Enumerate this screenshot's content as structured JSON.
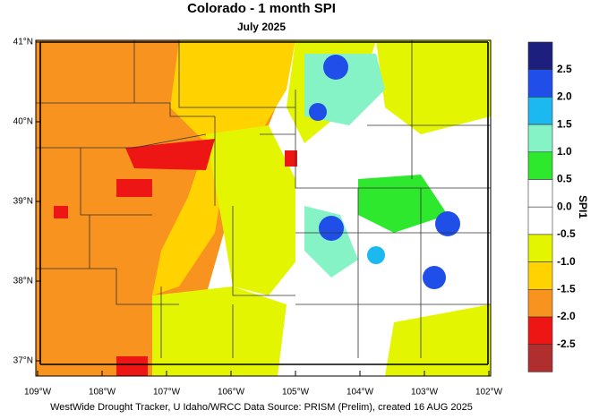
{
  "title": "Colorado - 1 month SPI",
  "subtitle": "July 2025",
  "latitude_labels": [
    "41°N",
    "40°N",
    "39°N",
    "38°N",
    "37°N"
  ],
  "longitude_labels": [
    "109°W",
    "108°W",
    "107°W",
    "106°W",
    "105°W",
    "104°W",
    "103°W",
    "102°W"
  ],
  "legend": {
    "title": "SPI1",
    "labels": [
      "2.5",
      "2.0",
      "1.5",
      "1.0",
      "0.5",
      "0.0",
      "-0.5",
      "-1.0",
      "-1.5",
      "-2.0",
      "-2.5"
    ],
    "colors": [
      "#1c1f7e",
      "#1f4fe8",
      "#1cb8f0",
      "#86f3c6",
      "#2de82d",
      "#ffffff",
      "#ffffff",
      "#e3f500",
      "#ffd200",
      "#f7931e",
      "#ee1515",
      "#b02e2e"
    ]
  },
  "footer": "WestWide Drought Tracker, U Idaho/WRCC Data Source: PRISM (Prelim), created 16 AUG 2025"
}
